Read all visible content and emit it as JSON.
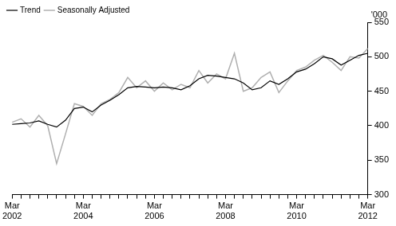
{
  "chart_data": {
    "type": "line",
    "ylabel": "'000",
    "categories": [
      "Mar 2002",
      null,
      null,
      null,
      null,
      null,
      null,
      null,
      "Mar 2004",
      null,
      null,
      null,
      null,
      null,
      null,
      null,
      "Mar 2006",
      null,
      null,
      null,
      null,
      null,
      null,
      null,
      "Mar 2008",
      null,
      null,
      null,
      null,
      null,
      null,
      null,
      "Mar 2010",
      null,
      null,
      null,
      null,
      null,
      null,
      null,
      "Mar 2012"
    ],
    "series": [
      {
        "name": "Trend",
        "color": "#000000",
        "values": [
          402,
          403,
          404,
          407,
          402,
          398,
          408,
          425,
          427,
          420,
          430,
          437,
          445,
          455,
          457,
          456,
          455,
          456,
          455,
          452,
          458,
          468,
          473,
          472,
          470,
          468,
          462,
          452,
          455,
          465,
          460,
          468,
          478,
          482,
          490,
          500,
          497,
          488,
          495,
          502,
          505
        ]
      },
      {
        "name": "Seasonally Adjusted",
        "color": "#b0b0b0",
        "values": [
          405,
          410,
          398,
          415,
          400,
          345,
          388,
          432,
          428,
          415,
          432,
          438,
          448,
          470,
          455,
          465,
          450,
          462,
          452,
          460,
          455,
          480,
          462,
          475,
          468,
          505,
          450,
          455,
          470,
          478,
          448,
          465,
          480,
          485,
          495,
          502,
          492,
          480,
          500,
          498,
          512
        ]
      }
    ],
    "ylim": [
      300,
      550
    ],
    "yticks": [
      300,
      350,
      400,
      450,
      500,
      550
    ],
    "grid": false,
    "legend": "top-left"
  }
}
